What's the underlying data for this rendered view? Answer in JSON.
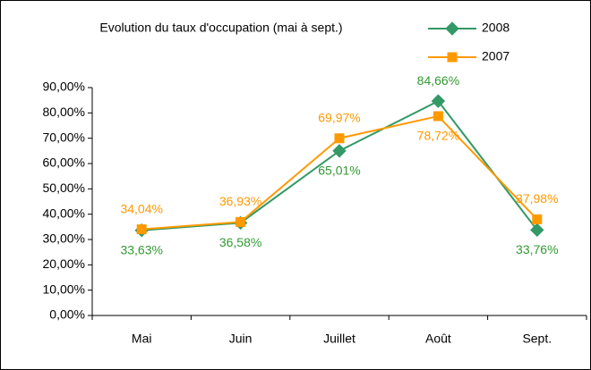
{
  "chart_data": {
    "type": "line",
    "title": "Evolution du taux d'occupation (mai à sept.)",
    "categories": [
      "Mai",
      "Juin",
      "Juillet",
      "Août",
      "Sept."
    ],
    "series": [
      {
        "name": "2008",
        "color": "#339966",
        "label_color": "#339933",
        "marker": "diamond",
        "values": [
          33.63,
          36.58,
          65.01,
          84.66,
          33.76
        ],
        "value_labels": [
          "33,63%",
          "36,58%",
          "65,01%",
          "84,66%",
          "33,76%"
        ]
      },
      {
        "name": "2007",
        "color": "#ff9900",
        "label_color": "#ff9900",
        "marker": "square",
        "values": [
          34.04,
          36.93,
          69.97,
          78.72,
          37.98
        ],
        "value_labels": [
          "34,04%",
          "36,93%",
          "69,97%",
          "78,72%",
          "37,98%"
        ]
      }
    ],
    "ylim": [
      0,
      90
    ],
    "yticks": [
      {
        "value": 0,
        "label": "0,00%"
      },
      {
        "value": 10,
        "label": "10,00%"
      },
      {
        "value": 20,
        "label": "20,00%"
      },
      {
        "value": 30,
        "label": "30,00%"
      },
      {
        "value": 40,
        "label": "40,00%"
      },
      {
        "value": 50,
        "label": "50,00%"
      },
      {
        "value": 60,
        "label": "60,00%"
      },
      {
        "value": 70,
        "label": "70,00%"
      },
      {
        "value": 80,
        "label": "80,00%"
      },
      {
        "value": 90,
        "label": "90,00%"
      }
    ],
    "grid": false,
    "legend": "top-right"
  }
}
